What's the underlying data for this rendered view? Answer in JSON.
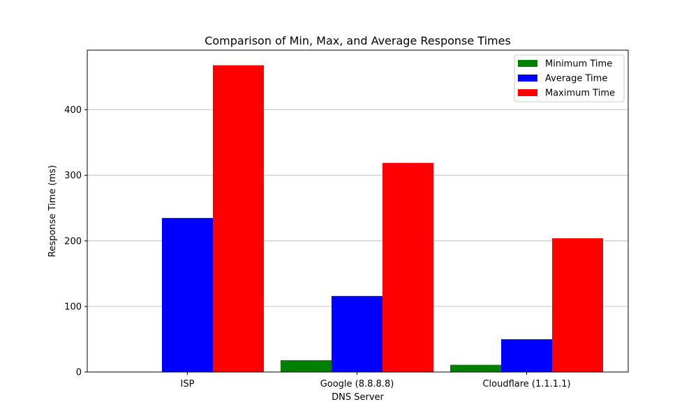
{
  "chart_data": {
    "type": "bar",
    "title": "Comparison of Min, Max, and Average Response Times",
    "xlabel": "DNS Server",
    "ylabel": "Response Time (ms)",
    "categories": [
      "ISP",
      "Google (8.8.8.8)",
      "Cloudflare (1.1.1.1)"
    ],
    "series": [
      {
        "name": "Minimum Time",
        "color": "#008000",
        "values": [
          0,
          18,
          11
        ]
      },
      {
        "name": "Average Time",
        "color": "#0000ff",
        "values": [
          235,
          116,
          50
        ]
      },
      {
        "name": "Maximum Time",
        "color": "#ff0000",
        "values": [
          468,
          319,
          204
        ]
      }
    ],
    "ylim": [
      0,
      491
    ],
    "yticks": [
      0,
      100,
      200,
      300,
      400
    ],
    "grid": "y",
    "legend": "top-right"
  }
}
